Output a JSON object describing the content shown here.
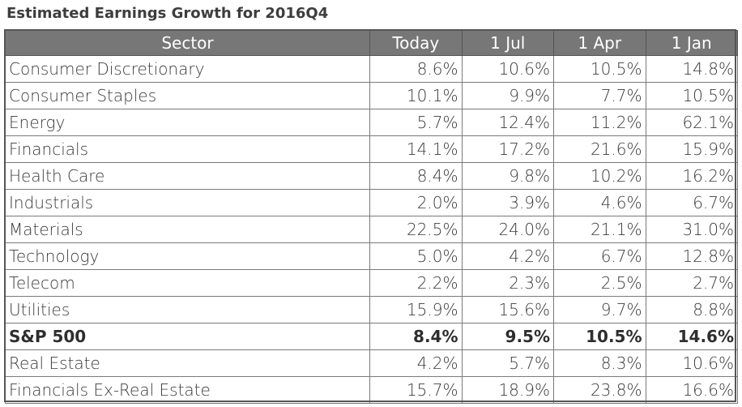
{
  "title": "Estimated Earnings Growth for 2016Q4",
  "table": {
    "headers": [
      "Sector",
      "Today",
      "1 Jul",
      "1 Apr",
      "1 Jan"
    ],
    "rows": [
      {
        "sector": "Consumer Discretionary",
        "values": [
          "8.6%",
          "10.6%",
          "10.5%",
          "14.8%"
        ],
        "bold": false
      },
      {
        "sector": "Consumer Staples",
        "values": [
          "10.1%",
          "9.9%",
          "7.7%",
          "10.5%"
        ],
        "bold": false
      },
      {
        "sector": "Energy",
        "values": [
          "5.7%",
          "12.4%",
          "11.2%",
          "62.1%"
        ],
        "bold": false
      },
      {
        "sector": "Financials",
        "values": [
          "14.1%",
          "17.2%",
          "21.6%",
          "15.9%"
        ],
        "bold": false
      },
      {
        "sector": "Health Care",
        "values": [
          "8.4%",
          "9.8%",
          "10.2%",
          "16.2%"
        ],
        "bold": false
      },
      {
        "sector": "Industrials",
        "values": [
          "2.0%",
          "3.9%",
          "4.6%",
          "6.7%"
        ],
        "bold": false
      },
      {
        "sector": "Materials",
        "values": [
          "22.5%",
          "24.0%",
          "21.1%",
          "31.0%"
        ],
        "bold": false
      },
      {
        "sector": "Technology",
        "values": [
          "5.0%",
          "4.2%",
          "6.7%",
          "12.8%"
        ],
        "bold": false
      },
      {
        "sector": "Telecom",
        "values": [
          "2.2%",
          "2.3%",
          "2.5%",
          "2.7%"
        ],
        "bold": false
      },
      {
        "sector": "Utilities",
        "values": [
          "15.9%",
          "15.6%",
          "9.7%",
          "8.8%"
        ],
        "bold": false
      },
      {
        "sector": "S&P 500",
        "values": [
          "8.4%",
          "9.5%",
          "10.5%",
          "14.6%"
        ],
        "bold": true
      },
      {
        "sector": "Real Estate",
        "values": [
          "4.2%",
          "5.7%",
          "8.3%",
          "10.6%"
        ],
        "bold": false
      },
      {
        "sector": "Financials Ex-Real Estate",
        "values": [
          "15.7%",
          "18.9%",
          "23.8%",
          "16.6%"
        ],
        "bold": false
      }
    ]
  },
  "colors": {
    "header_bg": "#777777",
    "header_text": "#ffffff",
    "border": "#7a7a7a",
    "text": "#3a3a3a"
  }
}
